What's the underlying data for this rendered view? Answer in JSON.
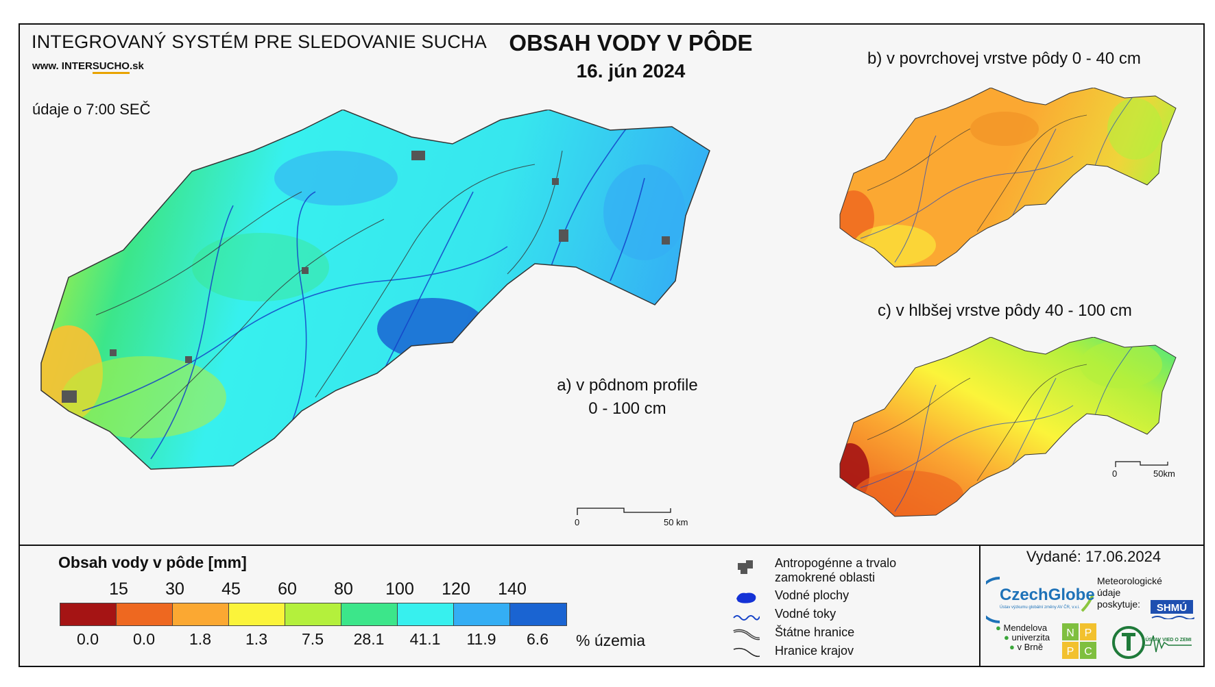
{
  "header": {
    "system_name": "INTEGROVANÝ SYSTÉM PRE SLEDOVANIE SUCHA",
    "website_prefix": "www. INTER",
    "website_highlight": "SUCHO",
    "website_suffix": ".sk",
    "data_time_note": "údaje o 7:00 SEČ",
    "title": "OBSAH VODY V PÔDE",
    "date": "16. jún 2024"
  },
  "maps": {
    "a": {
      "caption_line1": "a) v pôdnom profile",
      "caption_line2": "0 - 100 cm",
      "scale_start": "0",
      "scale_end": "50 km"
    },
    "b": {
      "caption": "b) v povrchovej vrstve pôdy 0 - 40 cm"
    },
    "c": {
      "caption": "c) v hlbšej vrstve pôdy 40 - 100 cm",
      "scale_start": "0",
      "scale_end": "50km"
    }
  },
  "legend": {
    "title": "Obsah vody v pôde  [mm]",
    "thresholds": [
      "15",
      "30",
      "45",
      "60",
      "80",
      "100",
      "120",
      "140"
    ],
    "colors": [
      "#a51414",
      "#ee6820",
      "#fba832",
      "#fbf43a",
      "#b4f03c",
      "#3ce68a",
      "#37f0ee",
      "#34aef4",
      "#1a64d2"
    ],
    "percent_of_area": [
      "0.0",
      "0.0",
      "1.8",
      "1.3",
      "7.5",
      "28.1",
      "41.1",
      "11.9",
      "6.6"
    ],
    "percent_unit": "% územia"
  },
  "symbols": [
    {
      "icon": "urban-area-icon",
      "label_line1": "Antropogénne a trvalo",
      "label_line2": "zamokrené oblasti"
    },
    {
      "icon": "water-body-icon",
      "label_line1": "Vodné plochy",
      "label_line2": ""
    },
    {
      "icon": "river-icon",
      "label_line1": "Vodné toky",
      "label_line2": ""
    },
    {
      "icon": "state-border-icon",
      "label_line1": "Štátne hranice",
      "label_line2": ""
    },
    {
      "icon": "region-border-icon",
      "label_line1": "Hranice krajov",
      "label_line2": ""
    }
  ],
  "footer": {
    "issued": "Vydané: 17.06.2024",
    "czechglobe_name": "CzechGlobe",
    "czechglobe_sub": "Ústav výzkumu globální změny AV ČR, v.v.i.",
    "meteo_line1": "Meteorologické",
    "meteo_line2": "údaje",
    "meteo_line3": "poskytuje:",
    "shmu_logo": "SHMÚ",
    "mendel_line1": "Mendelova",
    "mendel_line2": "univerzita",
    "mendel_line3": "v Brně",
    "nppc_letters": [
      "N",
      "P",
      "P",
      "C"
    ],
    "uvz_logo": "ÚSTAV VIED O ZEMI"
  }
}
